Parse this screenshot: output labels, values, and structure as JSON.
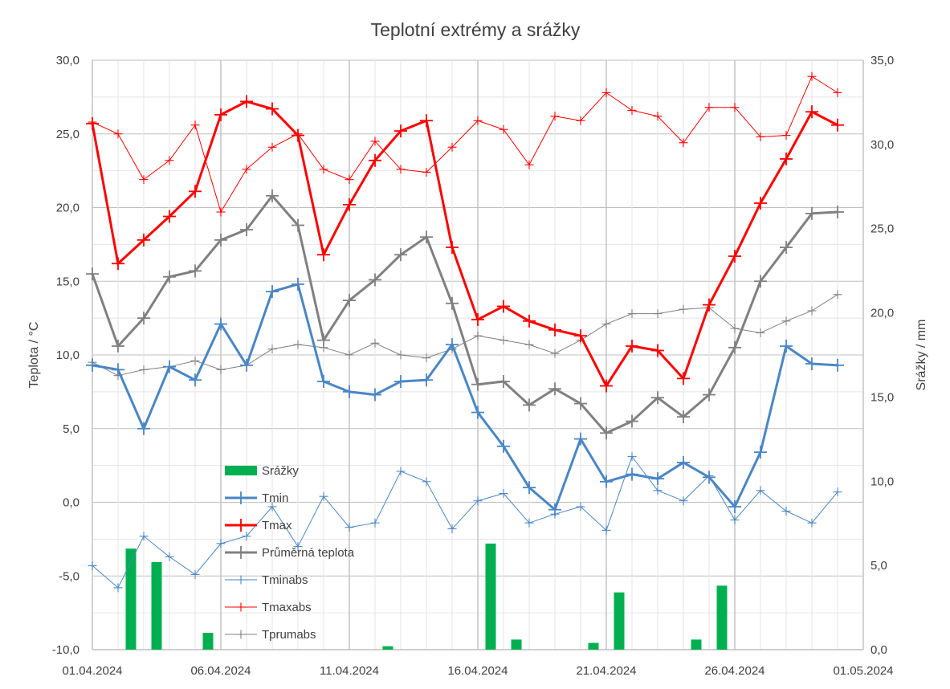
{
  "chart_data": {
    "type": "line",
    "title": "Teplotní extrémy a srážky",
    "ylabel_left": "Teplota / °C",
    "ylabel_right": "Srážky / mm",
    "ylim_left": [
      -10,
      30
    ],
    "ylim_right": [
      0,
      35
    ],
    "left_ticks": [
      "-10,0",
      "-5,0",
      "0,0",
      "5,0",
      "10,0",
      "15,0",
      "20,0",
      "25,0",
      "30,0"
    ],
    "right_ticks": [
      "0,0",
      "5,0",
      "10,0",
      "15,0",
      "20,0",
      "25,0",
      "30,0",
      "35,0"
    ],
    "x_tick_labels": [
      "01.04.2024",
      "06.04.2024",
      "11.04.2024",
      "16.04.2024",
      "21.04.2024",
      "26.04.2024",
      "01.05.2024"
    ],
    "grid": true,
    "legend_position": "inside-bottom-left",
    "x": [
      "01.04.2024",
      "02.04.2024",
      "03.04.2024",
      "04.04.2024",
      "05.04.2024",
      "06.04.2024",
      "07.04.2024",
      "08.04.2024",
      "09.04.2024",
      "10.04.2024",
      "11.04.2024",
      "12.04.2024",
      "13.04.2024",
      "14.04.2024",
      "15.04.2024",
      "16.04.2024",
      "17.04.2024",
      "18.04.2024",
      "19.04.2024",
      "20.04.2024",
      "21.04.2024",
      "22.04.2024",
      "23.04.2024",
      "24.04.2024",
      "25.04.2024",
      "26.04.2024",
      "27.04.2024",
      "28.04.2024",
      "29.04.2024",
      "30.04.2024",
      "01.05.2024"
    ],
    "series": [
      {
        "name": "Srážky",
        "type": "bar",
        "axis": "right",
        "color": "#00b050",
        "values": [
          null,
          6.0,
          5.2,
          null,
          1.0,
          null,
          null,
          null,
          null,
          null,
          null,
          0.2,
          null,
          null,
          null,
          6.3,
          0.6,
          null,
          null,
          0.4,
          3.4,
          null,
          null,
          0.6,
          3.8,
          null,
          null,
          null,
          null,
          null,
          null
        ]
      },
      {
        "name": "Tmin",
        "type": "line",
        "axis": "left",
        "color": "#4a86c5",
        "width": 3,
        "marker": 16,
        "values": [
          9.3,
          9.0,
          5.0,
          9.2,
          8.3,
          12.1,
          9.3,
          14.3,
          14.8,
          8.2,
          7.5,
          7.3,
          8.2,
          8.3,
          10.7,
          6.1,
          3.8,
          1.0,
          -0.5,
          4.3,
          1.4,
          1.9,
          1.6,
          2.7,
          1.7,
          -0.3,
          3.4,
          10.6,
          9.4,
          9.3,
          null
        ]
      },
      {
        "name": "Tmax",
        "type": "line",
        "axis": "left",
        "color": "#ff0000",
        "width": 3,
        "marker": 16,
        "values": [
          25.7,
          16.2,
          17.8,
          19.4,
          21.1,
          26.3,
          27.2,
          26.7,
          24.9,
          16.8,
          20.2,
          23.2,
          25.2,
          25.9,
          17.3,
          12.4,
          13.3,
          12.3,
          11.7,
          11.3,
          7.9,
          10.6,
          10.3,
          8.4,
          13.4,
          16.7,
          20.3,
          23.3,
          26.5,
          25.6,
          null
        ]
      },
      {
        "name": "Průměrná teplota",
        "type": "line",
        "axis": "left",
        "color": "#808080",
        "width": 3,
        "marker": 16,
        "values": [
          15.5,
          10.6,
          12.5,
          15.3,
          15.7,
          17.8,
          18.5,
          20.8,
          18.8,
          11.0,
          13.7,
          15.1,
          16.8,
          18.0,
          13.5,
          8.0,
          8.2,
          6.6,
          7.7,
          6.7,
          4.7,
          5.5,
          7.1,
          5.8,
          7.3,
          10.5,
          15.0,
          17.3,
          19.6,
          19.7,
          null
        ]
      },
      {
        "name": "Tminabs",
        "type": "line",
        "axis": "left",
        "color": "#4a86c5",
        "width": 1,
        "marker": 11,
        "values": [
          -4.3,
          -5.8,
          -2.3,
          -3.7,
          -4.9,
          -2.8,
          -2.3,
          -0.3,
          -3.0,
          0.4,
          -1.7,
          -1.4,
          2.1,
          1.4,
          -1.8,
          0.1,
          0.6,
          -1.4,
          -0.8,
          -0.3,
          -1.9,
          3.1,
          0.8,
          0.1,
          1.8,
          -1.2,
          0.8,
          -0.6,
          -1.4,
          0.7,
          null
        ]
      },
      {
        "name": "Tmaxabs",
        "type": "line",
        "axis": "left",
        "color": "#ff0000",
        "width": 1,
        "marker": 11,
        "values": [
          25.8,
          25.0,
          21.9,
          23.2,
          25.6,
          19.7,
          22.6,
          24.1,
          25.0,
          22.6,
          21.9,
          24.5,
          22.6,
          22.4,
          24.1,
          25.9,
          25.3,
          22.9,
          26.2,
          25.9,
          27.8,
          26.6,
          26.2,
          24.4,
          26.8,
          26.8,
          24.8,
          24.9,
          28.9,
          27.8,
          null
        ]
      },
      {
        "name": "Tprumabs",
        "type": "line",
        "axis": "left",
        "color": "#808080",
        "width": 1,
        "marker": 11,
        "values": [
          9.5,
          8.6,
          9.0,
          9.2,
          9.6,
          9.0,
          9.3,
          10.4,
          10.7,
          10.5,
          10.0,
          10.8,
          10.0,
          9.8,
          10.4,
          11.3,
          11.0,
          10.7,
          10.1,
          11.0,
          12.1,
          12.8,
          12.8,
          13.1,
          13.2,
          11.8,
          11.5,
          12.3,
          13.0,
          14.1,
          null
        ]
      }
    ]
  }
}
